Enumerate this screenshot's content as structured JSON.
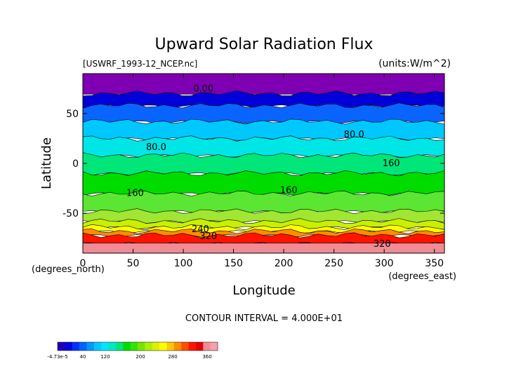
{
  "chart_data": {
    "type": "heatmap",
    "title": "Upward Solar Radiation Flux",
    "file_label": "[USWRF_1993-12_NCEP.nc]",
    "units_label": "(units:W/m^2)",
    "xlabel": "Longitude",
    "ylabel": "Latitude",
    "x_unit_label": "(degrees_east)",
    "y_unit_label": "(degrees_north)",
    "xlim": [
      0,
      360
    ],
    "ylim": [
      -90,
      90
    ],
    "x_ticks": [
      0,
      50,
      100,
      150,
      200,
      250,
      300,
      350
    ],
    "y_ticks": [
      50,
      0,
      -50
    ],
    "contour_interval_text": "CONTOUR INTERVAL = 4.000E+01",
    "contour_labels": [
      {
        "text": "0.00",
        "lon": 120,
        "lat": 75
      },
      {
        "text": "80.0",
        "lon": 270,
        "lat": 29
      },
      {
        "text": "80.0",
        "lon": 73,
        "lat": 16
      },
      {
        "text": "160",
        "lon": 307,
        "lat": 0
      },
      {
        "text": "160",
        "lon": 52,
        "lat": -30
      },
      {
        "text": "160",
        "lon": 205,
        "lat": -27
      },
      {
        "text": "240",
        "lon": 117,
        "lat": -66
      },
      {
        "text": "320",
        "lon": 125,
        "lat": -73
      },
      {
        "text": "320",
        "lon": 298,
        "lat": -81
      }
    ],
    "bands": [
      {
        "lat_top": 90,
        "lat_bottom": 70,
        "color": "#7f00b2"
      },
      {
        "lat_top": 70,
        "lat_bottom": 58,
        "color": "#0000d8"
      },
      {
        "lat_top": 58,
        "lat_bottom": 42,
        "color": "#0a64ff"
      },
      {
        "lat_top": 42,
        "lat_bottom": 25,
        "color": "#00c8ff"
      },
      {
        "lat_top": 25,
        "lat_bottom": 8,
        "color": "#00e6e6"
      },
      {
        "lat_top": 8,
        "lat_bottom": -10,
        "color": "#00e678"
      },
      {
        "lat_top": -10,
        "lat_bottom": -30,
        "color": "#00dc00"
      },
      {
        "lat_top": -30,
        "lat_bottom": -48,
        "color": "#5ae632"
      },
      {
        "lat_top": -48,
        "lat_bottom": -58,
        "color": "#a0e632"
      },
      {
        "lat_top": -58,
        "lat_bottom": -64,
        "color": "#c8f000"
      },
      {
        "lat_top": -64,
        "lat_bottom": -68,
        "color": "#ffff00"
      },
      {
        "lat_top": -68,
        "lat_bottom": -72,
        "color": "#ff8c00"
      },
      {
        "lat_top": -72,
        "lat_bottom": -80,
        "color": "#ff1400"
      },
      {
        "lat_top": -80,
        "lat_bottom": -90,
        "color": "#f08c96"
      }
    ],
    "colorbar": {
      "colors": [
        "#1e00b4",
        "#0000e6",
        "#0032ff",
        "#0064ff",
        "#0096ff",
        "#00c8ff",
        "#00e6ff",
        "#00e6c8",
        "#00e678",
        "#00dc00",
        "#32e600",
        "#78e600",
        "#aaf000",
        "#dcf000",
        "#ffff00",
        "#ffc800",
        "#ff8c00",
        "#ff5000",
        "#ff1400",
        "#e60000",
        "#f08c96",
        "#f5a0aa"
      ],
      "tick_labels": [
        "-4.73e-5",
        "40",
        "120",
        "200",
        "280",
        "360"
      ]
    }
  }
}
